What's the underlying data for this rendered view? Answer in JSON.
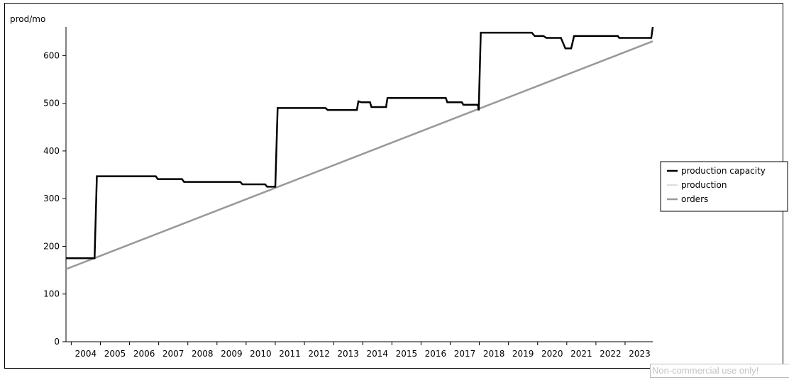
{
  "watermark": "Non-commercial use only!",
  "chart_data": {
    "type": "line",
    "title": "",
    "xlabel": "",
    "ylabel": "prod/mo",
    "ylim": [
      0,
      660
    ],
    "xlim": [
      2003.82,
      2023.95
    ],
    "yticks": [
      0,
      100,
      200,
      300,
      400,
      500,
      600
    ],
    "xticks": [
      "2004",
      "2005",
      "2006",
      "2007",
      "2008",
      "2009",
      "2010",
      "2011",
      "2012",
      "2013",
      "2014",
      "2015",
      "2016",
      "2017",
      "2018",
      "2019",
      "2020",
      "2021",
      "2022",
      "2023"
    ],
    "grid": false,
    "legend": "right",
    "series": [
      {
        "name": "production capacity",
        "color": "#000000",
        "width": 2.5,
        "points": [
          [
            2003.82,
            175
          ],
          [
            2004.8,
            175
          ],
          [
            2004.88,
            347
          ],
          [
            2006.9,
            347
          ],
          [
            2006.97,
            341
          ],
          [
            2007.8,
            341
          ],
          [
            2007.87,
            335
          ],
          [
            2009.8,
            335
          ],
          [
            2009.87,
            330
          ],
          [
            2010.65,
            330
          ],
          [
            2010.72,
            325
          ],
          [
            2011.0,
            325
          ],
          [
            2011.08,
            490
          ],
          [
            2012.72,
            490
          ],
          [
            2012.8,
            486
          ],
          [
            2013.8,
            486
          ],
          [
            2013.85,
            504
          ],
          [
            2013.95,
            502
          ],
          [
            2014.25,
            502
          ],
          [
            2014.3,
            492
          ],
          [
            2014.8,
            492
          ],
          [
            2014.85,
            511
          ],
          [
            2016.85,
            511
          ],
          [
            2016.9,
            502
          ],
          [
            2017.4,
            502
          ],
          [
            2017.45,
            497
          ],
          [
            2017.95,
            497
          ],
          [
            2017.98,
            485
          ],
          [
            2018.05,
            648
          ],
          [
            2019.8,
            648
          ],
          [
            2019.9,
            641
          ],
          [
            2020.2,
            641
          ],
          [
            2020.3,
            637
          ],
          [
            2020.8,
            637
          ],
          [
            2020.95,
            615
          ],
          [
            2021.15,
            615
          ],
          [
            2021.25,
            641
          ],
          [
            2022.75,
            641
          ],
          [
            2022.8,
            637
          ],
          [
            2023.9,
            637
          ],
          [
            2023.95,
            660
          ]
        ]
      },
      {
        "name": "production",
        "color": "#b8b8b8",
        "width": 1,
        "points": [
          [
            2003.82,
            152
          ],
          [
            2023.95,
            630
          ]
        ]
      },
      {
        "name": "orders",
        "color": "#999999",
        "width": 2.5,
        "points": [
          [
            2003.82,
            152
          ],
          [
            2023.95,
            630
          ]
        ]
      }
    ]
  }
}
